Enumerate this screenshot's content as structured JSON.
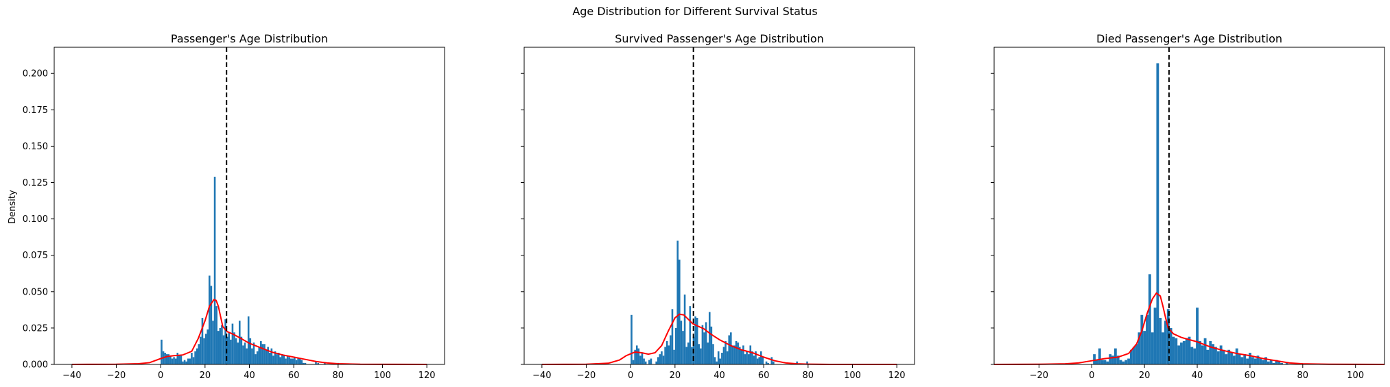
{
  "figure": {
    "suptitle": "Age Distribution for Different Survival Status",
    "shared_ylabel": "Density"
  },
  "chart_data": [
    {
      "type": "bar",
      "title": "Passenger's Age Distribution",
      "xlabel": "",
      "ylabel": "Density",
      "xlim": [
        -48,
        128
      ],
      "ylim": [
        0,
        0.218
      ],
      "xticks": [
        -40,
        -20,
        0,
        20,
        40,
        60,
        80,
        100,
        120
      ],
      "yticks": [
        0.0,
        0.025,
        0.05,
        0.075,
        0.1,
        0.125,
        0.15,
        0.175,
        0.2
      ],
      "ytick_labels": [
        "0.000",
        "0.025",
        "0.050",
        "0.075",
        "0.100",
        "0.125",
        "0.150",
        "0.175",
        "0.200"
      ],
      "mean_line_x": 29.7,
      "hist_color": "#1f77b4",
      "kde_color": "#ff0000",
      "bins": [
        [
          0.4,
          0.017
        ],
        [
          1.2,
          0.009
        ],
        [
          2.0,
          0.008
        ],
        [
          2.8,
          0.007
        ],
        [
          3.6,
          0.007
        ],
        [
          4.4,
          0.006
        ],
        [
          5.2,
          0.004
        ],
        [
          6.0,
          0.005
        ],
        [
          6.8,
          0.004
        ],
        [
          7.6,
          0.008
        ],
        [
          8.4,
          0.006
        ],
        [
          9.2,
          0.006
        ],
        [
          10.0,
          0.002
        ],
        [
          10.8,
          0.003
        ],
        [
          11.6,
          0.002
        ],
        [
          12.4,
          0.004
        ],
        [
          13.2,
          0.004
        ],
        [
          14.0,
          0.008
        ],
        [
          14.8,
          0.005
        ],
        [
          15.6,
          0.009
        ],
        [
          16.4,
          0.011
        ],
        [
          17.2,
          0.014
        ],
        [
          18.0,
          0.019
        ],
        [
          18.8,
          0.032
        ],
        [
          19.6,
          0.018
        ],
        [
          20.4,
          0.021
        ],
        [
          21.2,
          0.024
        ],
        [
          22.0,
          0.061
        ],
        [
          22.8,
          0.054
        ],
        [
          23.6,
          0.03
        ],
        [
          24.4,
          0.129
        ],
        [
          25.2,
          0.04
        ],
        [
          26.0,
          0.023
        ],
        [
          26.8,
          0.025
        ],
        [
          27.6,
          0.027
        ],
        [
          28.4,
          0.02
        ],
        [
          29.2,
          0.031
        ],
        [
          30.0,
          0.019
        ],
        [
          30.8,
          0.022
        ],
        [
          31.6,
          0.017
        ],
        [
          32.4,
          0.028
        ],
        [
          33.2,
          0.022
        ],
        [
          34.0,
          0.018
        ],
        [
          34.8,
          0.015
        ],
        [
          35.6,
          0.03
        ],
        [
          36.4,
          0.019
        ],
        [
          37.2,
          0.013
        ],
        [
          38.0,
          0.015
        ],
        [
          38.8,
          0.011
        ],
        [
          39.6,
          0.033
        ],
        [
          40.4,
          0.018
        ],
        [
          41.2,
          0.011
        ],
        [
          42.0,
          0.015
        ],
        [
          42.8,
          0.007
        ],
        [
          43.6,
          0.009
        ],
        [
          44.4,
          0.012
        ],
        [
          45.2,
          0.016
        ],
        [
          46.0,
          0.014
        ],
        [
          46.8,
          0.014
        ],
        [
          47.6,
          0.01
        ],
        [
          48.4,
          0.012
        ],
        [
          49.2,
          0.008
        ],
        [
          50.0,
          0.011
        ],
        [
          50.8,
          0.006
        ],
        [
          51.6,
          0.009
        ],
        [
          52.4,
          0.007
        ],
        [
          53.2,
          0.008
        ],
        [
          54.0,
          0.005
        ],
        [
          54.8,
          0.007
        ],
        [
          55.6,
          0.006
        ],
        [
          56.4,
          0.004
        ],
        [
          57.2,
          0.006
        ],
        [
          58.0,
          0.005
        ],
        [
          58.8,
          0.004
        ],
        [
          59.6,
          0.004
        ],
        [
          60.4,
          0.005
        ],
        [
          61.2,
          0.003
        ],
        [
          62.0,
          0.004
        ],
        [
          62.8,
          0.004
        ],
        [
          63.6,
          0.003
        ],
        [
          64.4,
          0.001
        ],
        [
          65.2,
          0.001
        ],
        [
          70.0,
          0.002
        ],
        [
          71.0,
          0.001
        ],
        [
          74.0,
          0.001
        ],
        [
          80.0,
          0.001
        ]
      ],
      "kde": [
        [
          -40,
          0.0
        ],
        [
          -20,
          0.0001
        ],
        [
          -10,
          0.0005
        ],
        [
          -5,
          0.0012
        ],
        [
          0,
          0.004
        ],
        [
          3,
          0.0055
        ],
        [
          6,
          0.006
        ],
        [
          10,
          0.0065
        ],
        [
          14,
          0.009
        ],
        [
          17,
          0.018
        ],
        [
          20,
          0.03
        ],
        [
          22,
          0.04
        ],
        [
          24,
          0.0445
        ],
        [
          25,
          0.044
        ],
        [
          26,
          0.04
        ],
        [
          27,
          0.033
        ],
        [
          28,
          0.026
        ],
        [
          30,
          0.0225
        ],
        [
          33,
          0.0205
        ],
        [
          36,
          0.018
        ],
        [
          40,
          0.0145
        ],
        [
          45,
          0.0115
        ],
        [
          50,
          0.0085
        ],
        [
          55,
          0.0065
        ],
        [
          60,
          0.005
        ],
        [
          65,
          0.0035
        ],
        [
          70,
          0.002
        ],
        [
          75,
          0.001
        ],
        [
          80,
          0.0005
        ],
        [
          90,
          0.0001
        ],
        [
          120,
          0.0
        ]
      ]
    },
    {
      "type": "bar",
      "title": "Survived Passenger's Age Distribution",
      "xlabel": "",
      "ylabel": "",
      "xlim": [
        -48,
        128
      ],
      "ylim": [
        0,
        0.218
      ],
      "xticks": [
        -40,
        -20,
        0,
        20,
        40,
        60,
        80,
        100,
        120
      ],
      "yticks": [
        0.0,
        0.025,
        0.05,
        0.075,
        0.1,
        0.125,
        0.15,
        0.175,
        0.2
      ],
      "mean_line_x": 28.3,
      "hist_color": "#1f77b4",
      "kde_color": "#ff0000",
      "bins": [
        [
          0.4,
          0.034
        ],
        [
          1.2,
          0.003
        ],
        [
          2.0,
          0.01
        ],
        [
          2.8,
          0.013
        ],
        [
          3.6,
          0.011
        ],
        [
          4.4,
          0.006
        ],
        [
          5.2,
          0.008
        ],
        [
          6.0,
          0.004
        ],
        [
          6.8,
          0.002
        ],
        [
          8.4,
          0.003
        ],
        [
          9.2,
          0.004
        ],
        [
          11.6,
          0.002
        ],
        [
          12.4,
          0.005
        ],
        [
          13.2,
          0.007
        ],
        [
          14.0,
          0.009
        ],
        [
          14.8,
          0.006
        ],
        [
          15.6,
          0.012
        ],
        [
          16.4,
          0.016
        ],
        [
          17.2,
          0.013
        ],
        [
          18.0,
          0.02
        ],
        [
          18.8,
          0.038
        ],
        [
          19.6,
          0.01
        ],
        [
          20.4,
          0.025
        ],
        [
          21.2,
          0.085
        ],
        [
          22.0,
          0.072
        ],
        [
          22.8,
          0.03
        ],
        [
          23.6,
          0.023
        ],
        [
          24.4,
          0.048
        ],
        [
          25.2,
          0.012
        ],
        [
          26.0,
          0.015
        ],
        [
          26.8,
          0.04
        ],
        [
          27.6,
          0.012
        ],
        [
          28.4,
          0.019
        ],
        [
          29.2,
          0.033
        ],
        [
          30.0,
          0.032
        ],
        [
          30.8,
          0.014
        ],
        [
          31.6,
          0.011
        ],
        [
          32.4,
          0.027
        ],
        [
          33.2,
          0.022
        ],
        [
          34.0,
          0.029
        ],
        [
          34.8,
          0.015
        ],
        [
          35.6,
          0.036
        ],
        [
          36.4,
          0.026
        ],
        [
          37.2,
          0.014
        ],
        [
          38.0,
          0.005
        ],
        [
          38.8,
          0.002
        ],
        [
          39.6,
          0.009
        ],
        [
          40.4,
          0.004
        ],
        [
          41.2,
          0.008
        ],
        [
          42.0,
          0.012
        ],
        [
          42.8,
          0.016
        ],
        [
          43.6,
          0.009
        ],
        [
          44.4,
          0.02
        ],
        [
          45.2,
          0.022
        ],
        [
          46.0,
          0.013
        ],
        [
          46.8,
          0.013
        ],
        [
          47.6,
          0.016
        ],
        [
          48.4,
          0.015
        ],
        [
          49.2,
          0.012
        ],
        [
          50.0,
          0.01
        ],
        [
          50.8,
          0.013
        ],
        [
          51.6,
          0.007
        ],
        [
          52.4,
          0.009
        ],
        [
          53.2,
          0.007
        ],
        [
          54.0,
          0.013
        ],
        [
          54.8,
          0.009
        ],
        [
          55.6,
          0.006
        ],
        [
          56.4,
          0.009
        ],
        [
          57.2,
          0.004
        ],
        [
          58.0,
          0.005
        ],
        [
          58.8,
          0.009
        ],
        [
          59.6,
          0.005
        ],
        [
          61.2,
          0.002
        ],
        [
          62.0,
          0.001
        ],
        [
          63.6,
          0.005
        ],
        [
          64.4,
          0.002
        ],
        [
          75.0,
          0.002
        ],
        [
          79.6,
          0.002
        ]
      ],
      "kde": [
        [
          -40,
          0.0
        ],
        [
          -20,
          0.0001
        ],
        [
          -10,
          0.0008
        ],
        [
          -5,
          0.003
        ],
        [
          -2,
          0.006
        ],
        [
          2,
          0.0085
        ],
        [
          5,
          0.008
        ],
        [
          8,
          0.007
        ],
        [
          11,
          0.008
        ],
        [
          14,
          0.013
        ],
        [
          17,
          0.023
        ],
        [
          20,
          0.032
        ],
        [
          22,
          0.0345
        ],
        [
          24,
          0.034
        ],
        [
          26,
          0.031
        ],
        [
          28,
          0.028
        ],
        [
          30,
          0.0265
        ],
        [
          33,
          0.0245
        ],
        [
          36,
          0.021
        ],
        [
          40,
          0.017
        ],
        [
          45,
          0.013
        ],
        [
          50,
          0.01
        ],
        [
          55,
          0.008
        ],
        [
          60,
          0.005
        ],
        [
          65,
          0.0025
        ],
        [
          70,
          0.001
        ],
        [
          75,
          0.0004
        ],
        [
          80,
          0.0002
        ],
        [
          90,
          0.0
        ],
        [
          120,
          0.0
        ]
      ]
    },
    {
      "type": "bar",
      "title": "Died Passenger's Age Distribution",
      "xlabel": "",
      "ylabel": "",
      "xlim": [
        -37,
        111
      ],
      "ylim": [
        0,
        0.218
      ],
      "xticks": [
        -40,
        -20,
        0,
        20,
        40,
        60,
        80,
        100
      ],
      "yticks": [
        0.0,
        0.025,
        0.05,
        0.075,
        0.1,
        0.125,
        0.15,
        0.175,
        0.2
      ],
      "mean_line_x": 29.3,
      "hist_color": "#1f77b4",
      "kde_color": "#ff0000",
      "bins": [
        [
          1.0,
          0.007
        ],
        [
          2.0,
          0.003
        ],
        [
          3.0,
          0.011
        ],
        [
          4.0,
          0.003
        ],
        [
          5.0,
          0.003
        ],
        [
          6.0,
          0.002
        ],
        [
          7.0,
          0.007
        ],
        [
          8.0,
          0.006
        ],
        [
          9.0,
          0.011
        ],
        [
          10.0,
          0.006
        ],
        [
          11.0,
          0.003
        ],
        [
          12.0,
          0.002
        ],
        [
          13.0,
          0.003
        ],
        [
          14.0,
          0.004
        ],
        [
          15.0,
          0.01
        ],
        [
          16.0,
          0.012
        ],
        [
          17.0,
          0.014
        ],
        [
          18.0,
          0.022
        ],
        [
          19.0,
          0.034
        ],
        [
          20.0,
          0.023
        ],
        [
          21.0,
          0.034
        ],
        [
          22.0,
          0.062
        ],
        [
          23.0,
          0.022
        ],
        [
          24.0,
          0.039
        ],
        [
          25.0,
          0.207
        ],
        [
          26.0,
          0.032
        ],
        [
          27.0,
          0.022
        ],
        [
          28.0,
          0.03
        ],
        [
          29.0,
          0.038
        ],
        [
          30.0,
          0.025
        ],
        [
          31.0,
          0.019
        ],
        [
          32.0,
          0.018
        ],
        [
          33.0,
          0.013
        ],
        [
          34.0,
          0.015
        ],
        [
          35.0,
          0.016
        ],
        [
          36.0,
          0.018
        ],
        [
          37.0,
          0.019
        ],
        [
          38.0,
          0.012
        ],
        [
          39.0,
          0.011
        ],
        [
          40.0,
          0.039
        ],
        [
          41.0,
          0.016
        ],
        [
          42.0,
          0.013
        ],
        [
          43.0,
          0.018
        ],
        [
          44.0,
          0.01
        ],
        [
          45.0,
          0.016
        ],
        [
          46.0,
          0.014
        ],
        [
          47.0,
          0.012
        ],
        [
          48.0,
          0.009
        ],
        [
          49.0,
          0.013
        ],
        [
          50.0,
          0.01
        ],
        [
          51.0,
          0.007
        ],
        [
          52.0,
          0.01
        ],
        [
          53.0,
          0.008
        ],
        [
          54.0,
          0.006
        ],
        [
          55.0,
          0.011
        ],
        [
          56.0,
          0.007
        ],
        [
          57.0,
          0.005
        ],
        [
          58.0,
          0.007
        ],
        [
          59.0,
          0.004
        ],
        [
          60.0,
          0.008
        ],
        [
          61.0,
          0.005
        ],
        [
          62.0,
          0.004
        ],
        [
          63.0,
          0.006
        ],
        [
          64.0,
          0.004
        ],
        [
          65.0,
          0.003
        ],
        [
          66.0,
          0.005
        ],
        [
          67.0,
          0.002
        ],
        [
          68.0,
          0.003
        ],
        [
          69.0,
          0.001
        ],
        [
          70.0,
          0.003
        ],
        [
          71.0,
          0.002
        ],
        [
          72.0,
          0.001
        ],
        [
          74.0,
          0.001
        ]
      ],
      "kde": [
        [
          -37,
          0.0
        ],
        [
          -20,
          0.0001
        ],
        [
          -10,
          0.0004
        ],
        [
          -5,
          0.001
        ],
        [
          0,
          0.0025
        ],
        [
          5,
          0.004
        ],
        [
          10,
          0.005
        ],
        [
          14,
          0.0075
        ],
        [
          17,
          0.014
        ],
        [
          19,
          0.023
        ],
        [
          21,
          0.035
        ],
        [
          23,
          0.045
        ],
        [
          24.5,
          0.049
        ],
        [
          26,
          0.047
        ],
        [
          27,
          0.04
        ],
        [
          28,
          0.032
        ],
        [
          29,
          0.025
        ],
        [
          31,
          0.021
        ],
        [
          34,
          0.0185
        ],
        [
          37,
          0.017
        ],
        [
          40,
          0.0155
        ],
        [
          45,
          0.012
        ],
        [
          50,
          0.0095
        ],
        [
          55,
          0.0075
        ],
        [
          60,
          0.006
        ],
        [
          65,
          0.004
        ],
        [
          70,
          0.0025
        ],
        [
          75,
          0.001
        ],
        [
          80,
          0.0004
        ],
        [
          90,
          0.0001
        ],
        [
          111,
          0.0
        ]
      ]
    }
  ]
}
